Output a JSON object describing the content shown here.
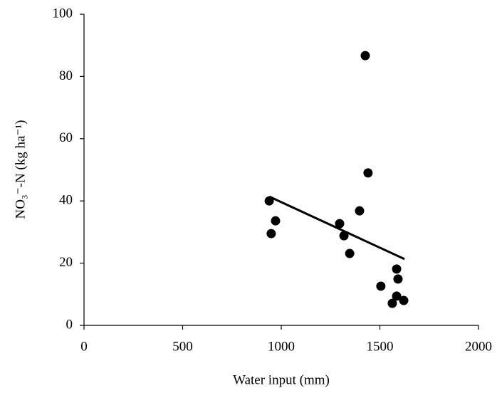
{
  "chart_data": {
    "type": "scatter",
    "x_label": "Water input (mm)",
    "y_label": "NO₃⁻-N (kg ha⁻¹)",
    "x": [
      939,
      949,
      971,
      1296,
      1318,
      1347,
      1397,
      1426,
      1440,
      1505,
      1563,
      1585,
      1585,
      1592,
      1621
    ],
    "values": [
      40.0,
      29.5,
      33.6,
      32.7,
      28.8,
      23.1,
      36.8,
      86.7,
      49.0,
      12.6,
      7.1,
      18.1,
      9.4,
      14.9,
      8.0
    ],
    "color": "#000000",
    "trend": {
      "x": [
        939,
        1625
      ],
      "values": [
        41.4,
        21.3
      ],
      "color": "#000000"
    },
    "xlim": [
      0,
      2000
    ],
    "xticks": [
      0,
      500,
      1000,
      1500,
      2000
    ],
    "ylim": [
      0,
      100
    ],
    "yticks": [
      0,
      20,
      40,
      60,
      80,
      100
    ],
    "grid": false
  }
}
